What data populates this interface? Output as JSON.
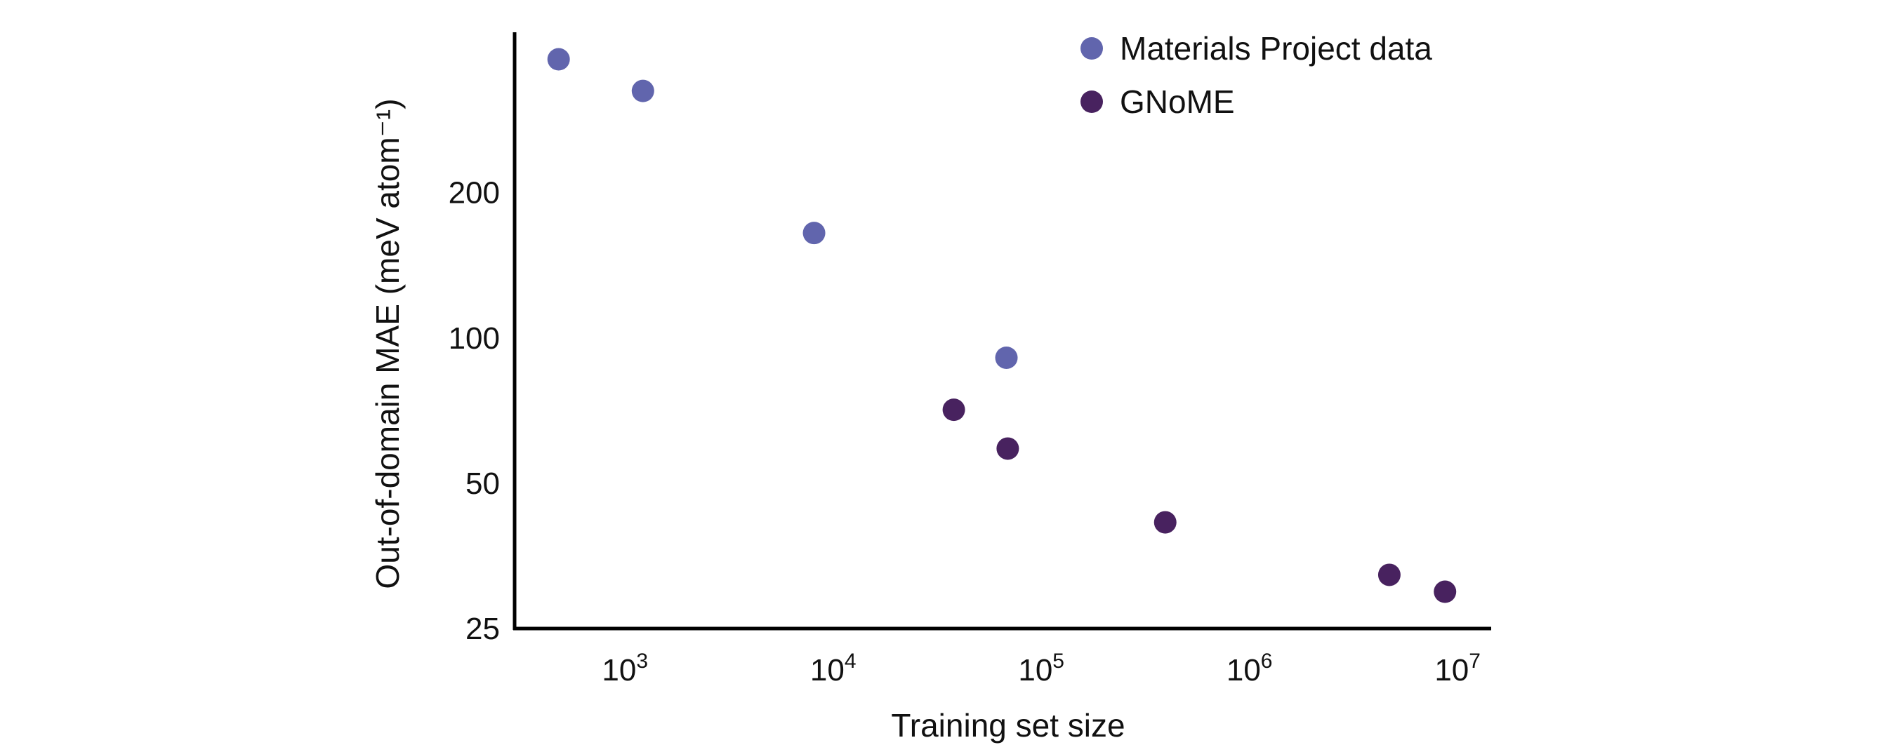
{
  "chart_data": {
    "type": "scatter",
    "title": "",
    "xlabel": "Training set size",
    "ylabel": "Out-of-domain MAE (meV atom⁻¹)",
    "xscale": "log",
    "yscale": "log",
    "xlim": [
      295,
      14500000
    ],
    "ylim": [
      25,
      430
    ],
    "x_ticks": [
      {
        "value": 1000,
        "base": "10",
        "exp": "3"
      },
      {
        "value": 10000,
        "base": "10",
        "exp": "4"
      },
      {
        "value": 100000,
        "base": "10",
        "exp": "5"
      },
      {
        "value": 1000000,
        "base": "10",
        "exp": "6"
      },
      {
        "value": 10000000,
        "base": "10",
        "exp": "7"
      }
    ],
    "y_ticks": [
      {
        "value": 25,
        "label": "25"
      },
      {
        "value": 50,
        "label": "50"
      },
      {
        "value": 100,
        "label": "100"
      },
      {
        "value": 200,
        "label": "200"
      }
    ],
    "grid": false,
    "legend_position": "top-right",
    "series": [
      {
        "name": "Materials Project data",
        "color": "#6165ad",
        "points": [
          [
            480,
            378
          ],
          [
            1220,
            325
          ],
          [
            8100,
            165
          ],
          [
            68000,
            91
          ]
        ]
      },
      {
        "name": "GNoME",
        "color": "#48225f",
        "points": [
          [
            38000,
            71
          ],
          [
            69000,
            59
          ],
          [
            394000,
            41.5
          ],
          [
            4700000,
            32.3
          ],
          [
            8700000,
            29.8
          ]
        ]
      }
    ]
  }
}
